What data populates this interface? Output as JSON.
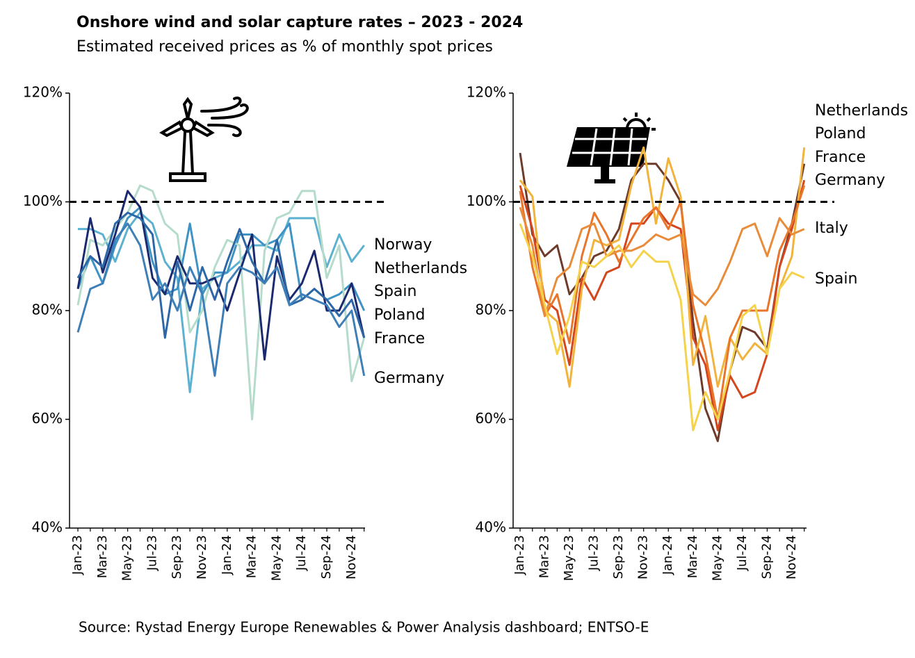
{
  "title": "Onshore wind  and solar capture rates – 2023 - 2024",
  "subtitle": "Estimated received prices as % of monthly spot prices",
  "source": "Source: Rystad Energy Europe Renewables & Power Analysis dashboard; ENTSO-E",
  "chart_data": [
    {
      "type": "line",
      "categories": [
        "Jan-23",
        null,
        "Mar-23",
        null,
        "May-23",
        null,
        "Jul-23",
        null,
        "Sep-23",
        null,
        "Nov-23",
        null,
        "Jan-24",
        null,
        "Mar-24",
        null,
        "May-24",
        null,
        "Jul-24",
        null,
        "Sep-24",
        null,
        "Nov-24",
        null
      ],
      "ylim": [
        40,
        120
      ],
      "yticks": [
        {
          "value": 40,
          "label": "40%"
        },
        {
          "value": 60,
          "label": "60%"
        },
        {
          "value": 80,
          "label": "80%"
        },
        {
          "value": 100,
          "label": "100%"
        },
        {
          "value": 120,
          "label": "120%"
        }
      ],
      "reference_line": 100,
      "series": [
        {
          "name": "Norway",
          "color": "#5cb0d0",
          "values": [
            95,
            95,
            94,
            89,
            95,
            98,
            96,
            89,
            86,
            65,
            84,
            86,
            87,
            89,
            92,
            92,
            91,
            97,
            97,
            97,
            88,
            94,
            89,
            92
          ]
        },
        {
          "name": "Netherlands",
          "color": "#3f93c4",
          "values": [
            84,
            90,
            85,
            92,
            97,
            99,
            89,
            83,
            84,
            96,
            83,
            87,
            87,
            94,
            94,
            92,
            93,
            96,
            82,
            84,
            82,
            83,
            85,
            80
          ]
        },
        {
          "name": "Spain",
          "color": "#b5dccb",
          "values": [
            81,
            93,
            92,
            95,
            98,
            103,
            102,
            96,
            94,
            76,
            80,
            88,
            93,
            92,
            60,
            91,
            97,
            98,
            102,
            102,
            86,
            92,
            67,
            75
          ]
        },
        {
          "name": "Poland",
          "color": "#1b2a6e",
          "values": [
            84,
            97,
            87,
            94,
            102,
            99,
            86,
            83,
            90,
            85,
            85,
            86,
            80,
            87,
            94,
            71,
            90,
            82,
            85,
            91,
            80,
            80,
            85,
            75
          ]
        },
        {
          "name": "France",
          "color": "#2e67a6",
          "values": [
            86,
            90,
            88,
            96,
            98,
            97,
            94,
            75,
            89,
            80,
            88,
            82,
            89,
            95,
            89,
            85,
            93,
            81,
            82,
            84,
            82,
            79,
            82,
            75
          ]
        },
        {
          "name": "Germany",
          "color": "#3f7fb8",
          "values": [
            76,
            84,
            85,
            93,
            96,
            92,
            82,
            85,
            80,
            88,
            83,
            68,
            85,
            88,
            87,
            85,
            88,
            81,
            83,
            82,
            81,
            77,
            80,
            68
          ]
        }
      ]
    },
    {
      "type": "line",
      "categories": [
        "Jan-23",
        null,
        "Mar-23",
        null,
        "May-23",
        null,
        "Jul-23",
        null,
        "Sep-23",
        null,
        "Nov-23",
        null,
        "Jan-24",
        null,
        "Mar-24",
        null,
        "May-24",
        null,
        "Jul-24",
        null,
        "Sep-24",
        null,
        "Nov-24",
        null
      ],
      "ylim": [
        40,
        120
      ],
      "yticks": [
        {
          "value": 40,
          "label": "40%"
        },
        {
          "value": 60,
          "label": "60%"
        },
        {
          "value": 80,
          "label": "80%"
        },
        {
          "value": 100,
          "label": "100%"
        },
        {
          "value": 120,
          "label": "120%"
        }
      ],
      "reference_line": 100,
      "series": [
        {
          "name": "Netherlands",
          "color": "#6e3b2b",
          "values": [
            109,
            94,
            90,
            92,
            83,
            86,
            90,
            91,
            95,
            104,
            107,
            107,
            104,
            100,
            78,
            62,
            56,
            69,
            77,
            76,
            73,
            88,
            96,
            107
          ]
        },
        {
          "name": "Poland",
          "color": "#d4461d",
          "values": [
            103,
            95,
            82,
            80,
            70,
            86,
            82,
            87,
            88,
            96,
            96,
            99,
            96,
            95,
            75,
            70,
            58,
            68,
            64,
            65,
            72,
            88,
            95,
            104
          ]
        },
        {
          "name": "France",
          "color": "#f2b33d",
          "values": [
            104,
            101,
            80,
            78,
            66,
            84,
            93,
            92,
            93,
            103,
            110,
            96,
            108,
            101,
            70,
            79,
            66,
            75,
            71,
            74,
            72,
            84,
            90,
            110
          ]
        },
        {
          "name": "Germany",
          "color": "#e8752a",
          "values": [
            102,
            88,
            79,
            83,
            74,
            90,
            98,
            94,
            89,
            93,
            97,
            99,
            95,
            100,
            81,
            72,
            60,
            75,
            80,
            80,
            80,
            91,
            96,
            103
          ]
        },
        {
          "name": "Italy",
          "color": "#e88c3a",
          "values": [
            99,
            92,
            79,
            86,
            88,
            95,
            96,
            90,
            91,
            91,
            92,
            94,
            93,
            94,
            83,
            81,
            84,
            89,
            95,
            96,
            90,
            97,
            94,
            95
          ]
        },
        {
          "name": "Spain",
          "color": "#f5d24b",
          "values": [
            96,
            90,
            81,
            72,
            79,
            89,
            88,
            90,
            92,
            88,
            91,
            89,
            89,
            82,
            58,
            65,
            60,
            69,
            79,
            81,
            72,
            84,
            87,
            86
          ]
        }
      ]
    }
  ]
}
